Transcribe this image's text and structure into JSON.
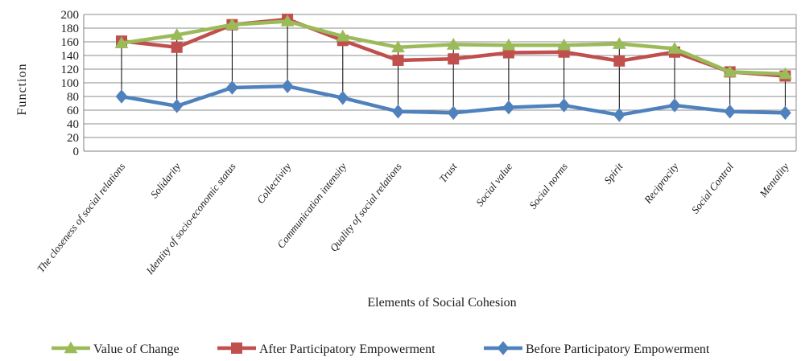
{
  "chart_data": {
    "type": "line",
    "categories": [
      "The closeness of social relations",
      "Solidarity",
      "Identity of socio-economic status",
      "Collectivity",
      "Communication intensity",
      "Quality of social relations",
      "Trust",
      "Social value",
      "Social norms",
      "Spirit",
      "Reciprocity",
      "Social Control",
      "Mentality"
    ],
    "series": [
      {
        "name": "Value of Change",
        "color": "#9bbb59",
        "marker": "triangle",
        "values": [
          158,
          170,
          185,
          190,
          168,
          152,
          156,
          155,
          155,
          157,
          150,
          116,
          113
        ]
      },
      {
        "name": "After Participatory Empowerment",
        "color": "#c0504d",
        "marker": "square",
        "values": [
          161,
          152,
          185,
          193,
          162,
          133,
          135,
          144,
          145,
          132,
          145,
          116,
          110
        ]
      },
      {
        "name": "Before Participatory Empowerment",
        "color": "#4f81bd",
        "marker": "diamond",
        "values": [
          80,
          66,
          93,
          95,
          78,
          58,
          56,
          64,
          67,
          53,
          67,
          58,
          56
        ]
      }
    ],
    "ylabel": "Function",
    "xlabel": "Elements of Social Cohesion",
    "ylim": [
      0,
      200
    ],
    "yticks": [
      0,
      20,
      40,
      60,
      80,
      100,
      120,
      140,
      160,
      180,
      200
    ],
    "grid": true,
    "drop_lines": true,
    "legend_position": "bottom"
  }
}
